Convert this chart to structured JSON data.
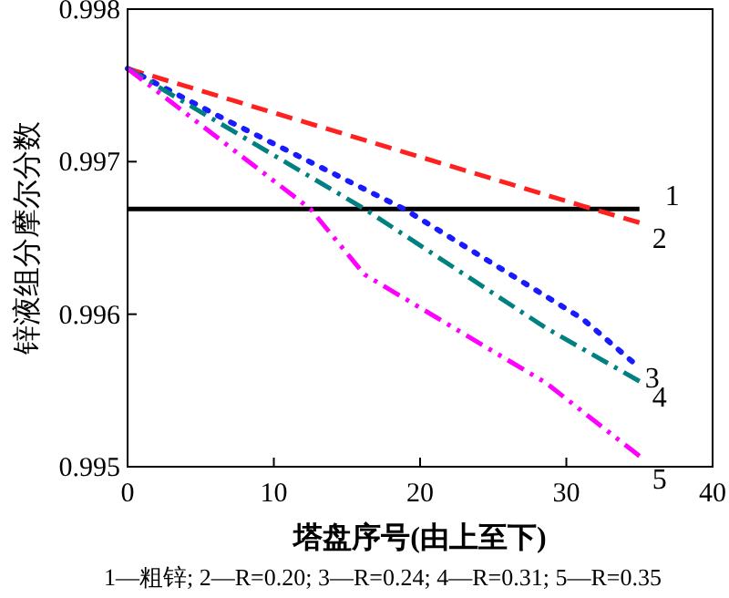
{
  "chart_data": {
    "type": "line",
    "xlabel": "塔盘序号(由上至下)",
    "ylabel": "锌液组分摩尔分数",
    "annotations": [
      "1—粗锌; 2—R=0.20; 3—R=0.24; 4—R=0.31; 5—R=0.35"
    ],
    "xlim": [
      0,
      40
    ],
    "xticks": [
      0,
      10,
      20,
      30,
      40
    ],
    "ylim": [
      0.995,
      0.998
    ],
    "yticks": [
      0.995,
      0.996,
      0.997,
      0.998
    ],
    "grid": false,
    "legend": false,
    "marker": "none",
    "series": [
      {
        "name": "1",
        "color": "#000000",
        "line_style": "solid",
        "x": [
          0,
          35
        ],
        "values": [
          0.99669,
          0.99669
        ]
      },
      {
        "name": "2",
        "color": "#ff2020",
        "line_style": "dashed",
        "x": [
          0,
          31.1,
          35
        ],
        "values": [
          0.99761,
          0.99671,
          0.9966
        ]
      },
      {
        "name": "3",
        "color": "#1a1aff",
        "line_style": "dotted",
        "x": [
          0,
          6.6,
          18.9,
          31.1,
          34.5
        ],
        "values": [
          0.99761,
          0.99728,
          0.99669,
          0.99597,
          0.99569
        ]
      },
      {
        "name": "4",
        "color": "#008080",
        "line_style": "dashdot",
        "x": [
          0,
          16.2,
          28.6,
          35
        ],
        "values": [
          0.99761,
          0.99669,
          0.99591,
          0.99556
        ]
      },
      {
        "name": "5",
        "color": "#ff00ff",
        "line_style": "dashdotdot",
        "x": [
          0,
          12.5,
          16.2,
          28.6,
          35
        ],
        "values": [
          0.99761,
          0.99669,
          0.99626,
          0.99555,
          0.99507
        ]
      }
    ]
  }
}
